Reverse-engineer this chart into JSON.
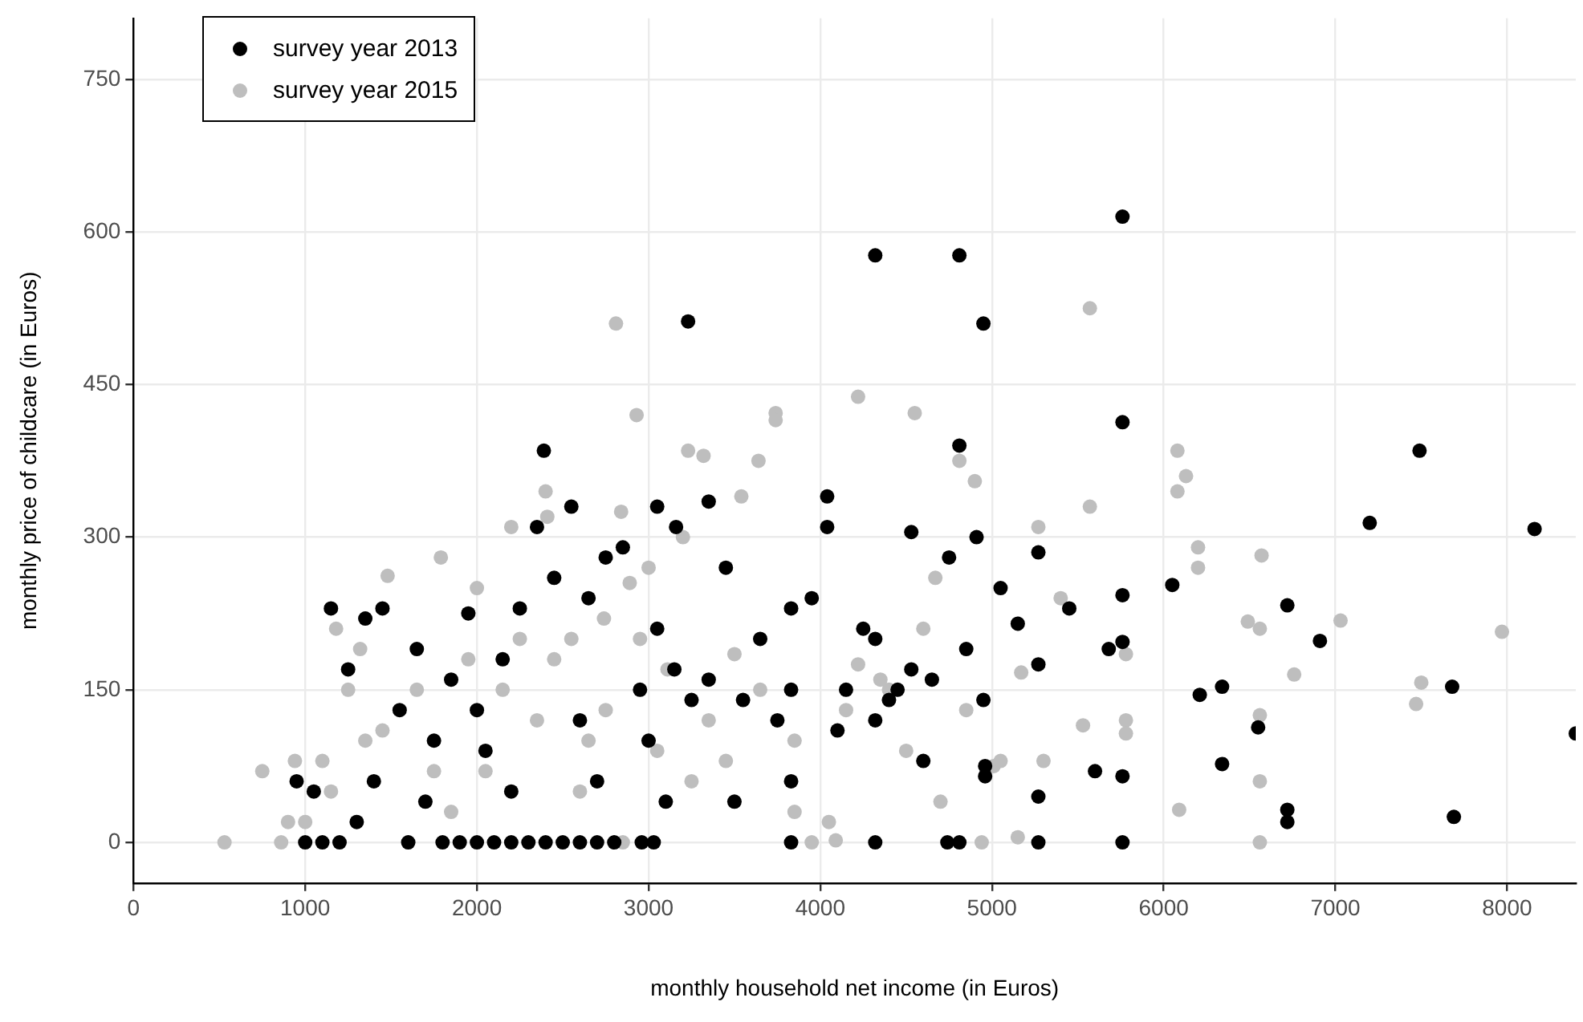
{
  "chart_data": {
    "type": "scatter",
    "xlabel": "monthly household net income (in Euros)",
    "ylabel": "monthly price of childcare (in Euros)",
    "xlim": [
      0,
      8400
    ],
    "ylim": [
      -40,
      810
    ],
    "xticks": [
      0,
      1000,
      2000,
      3000,
      4000,
      5000,
      6000,
      7000,
      8000
    ],
    "yticks": [
      0,
      150,
      300,
      450,
      600,
      750
    ],
    "grid": true,
    "legend": "top left",
    "marker": "circle",
    "series": [
      {
        "name": "survey year 2013",
        "color": "#000000",
        "x": [
          5760,
          4320,
          4810,
          3230,
          4950,
          5760,
          7490,
          2390,
          4810,
          8160,
          7200,
          6050,
          8400,
          7680,
          7690,
          6720,
          6720,
          6720,
          6910,
          6340,
          6210,
          6340,
          6550,
          5760,
          5760,
          5760,
          5760,
          5680,
          5270,
          5270,
          5270,
          5270,
          4910,
          4960,
          4960,
          4850,
          4740,
          4810,
          4600,
          4530,
          4530,
          4320,
          4320,
          4320,
          4040,
          4040,
          3830,
          3830,
          3830,
          3830,
          3350,
          3350,
          3160,
          3050,
          3030,
          2960,
          2800,
          2700,
          2600,
          2500,
          2400,
          2300,
          2200,
          2100,
          2000,
          1900,
          1800,
          1600,
          1200,
          1100,
          1000,
          950,
          1050,
          1150,
          1250,
          1350,
          1450,
          1550,
          1650,
          1750,
          1850,
          1950,
          2050,
          2150,
          2250,
          2350,
          2450,
          2550,
          2650,
          2750,
          2850,
          2950,
          3050,
          3150,
          3250,
          3450,
          3550,
          3650,
          3750,
          3950,
          4150,
          4250,
          4450,
          4650,
          4750,
          5050,
          5150,
          5450,
          5600,
          1300,
          1400,
          1700,
          2000,
          2600,
          3100,
          3500,
          4100,
          4400,
          4950,
          3000,
          2700,
          2200
        ],
        "values": [
          615,
          577,
          577,
          512,
          510,
          413,
          385,
          385,
          390,
          308,
          314,
          253,
          107,
          153,
          25,
          32,
          20,
          233,
          198,
          153,
          145,
          77,
          113,
          0,
          243,
          197,
          65,
          190,
          285,
          0,
          45,
          175,
          300,
          65,
          75,
          190,
          0,
          0,
          80,
          305,
          170,
          200,
          120,
          0,
          340,
          310,
          0,
          230,
          150,
          60,
          335,
          160,
          310,
          330,
          0,
          0,
          0,
          0,
          0,
          0,
          0,
          0,
          0,
          0,
          0,
          0,
          0,
          0,
          0,
          0,
          0,
          60,
          50,
          230,
          170,
          220,
          230,
          130,
          190,
          100,
          160,
          225,
          90,
          180,
          230,
          310,
          260,
          330,
          240,
          280,
          290,
          150,
          210,
          170,
          140,
          270,
          140,
          200,
          120,
          240,
          150,
          210,
          150,
          160,
          280,
          250,
          215,
          230,
          70,
          20,
          60,
          40,
          130,
          120,
          40,
          40,
          110,
          140,
          140,
          100,
          60,
          50
        ]
      },
      {
        "name": "survey year 2015",
        "color": "#bebebe",
        "x": [
          2810,
          5570,
          4220,
          3740,
          3740,
          4550,
          2930,
          3230,
          6080,
          6080,
          6130,
          6490,
          6760,
          7030,
          7470,
          7500,
          7970,
          6570,
          6560,
          6560,
          6560,
          6560,
          6200,
          6200,
          6090,
          5780,
          5780,
          5780,
          5570,
          5530,
          5400,
          5270,
          5170,
          5150,
          5010,
          4940,
          4900,
          4810,
          4670,
          4600,
          4400,
          4220,
          4090,
          3950,
          3640,
          3540,
          3500,
          3320,
          3200,
          2890,
          2840,
          2740,
          2400,
          2410,
          2200,
          1790,
          1480,
          1320,
          1180,
          1100,
          1000,
          900,
          860,
          940,
          750,
          530,
          1150,
          1250,
          1350,
          1450,
          1650,
          1750,
          1850,
          1950,
          2050,
          2150,
          2250,
          2350,
          2450,
          2550,
          2650,
          2750,
          2850,
          2950,
          3050,
          3110,
          3250,
          3350,
          3450,
          3650,
          3850,
          4050,
          4150,
          4350,
          4500,
          4700,
          4850,
          5050,
          5300,
          3850,
          2600,
          1600,
          2000,
          3000
        ],
        "values": [
          510,
          525,
          438,
          422,
          415,
          422,
          420,
          385,
          385,
          345,
          360,
          217,
          165,
          218,
          136,
          157,
          207,
          282,
          210,
          125,
          0,
          60,
          290,
          270,
          32,
          120,
          107,
          185,
          330,
          115,
          240,
          310,
          167,
          5,
          75,
          0,
          355,
          375,
          260,
          210,
          150,
          175,
          2,
          0,
          375,
          340,
          185,
          380,
          300,
          255,
          325,
          220,
          345,
          320,
          310,
          280,
          262,
          190,
          210,
          80,
          20,
          20,
          0,
          80,
          70,
          0,
          50,
          150,
          100,
          110,
          150,
          70,
          30,
          180,
          70,
          150,
          200,
          120,
          180,
          200,
          100,
          130,
          0,
          200,
          90,
          170,
          60,
          120,
          80,
          150,
          100,
          20,
          130,
          160,
          90,
          40,
          130,
          80,
          80,
          30,
          50,
          0,
          250,
          270
        ]
      }
    ]
  }
}
